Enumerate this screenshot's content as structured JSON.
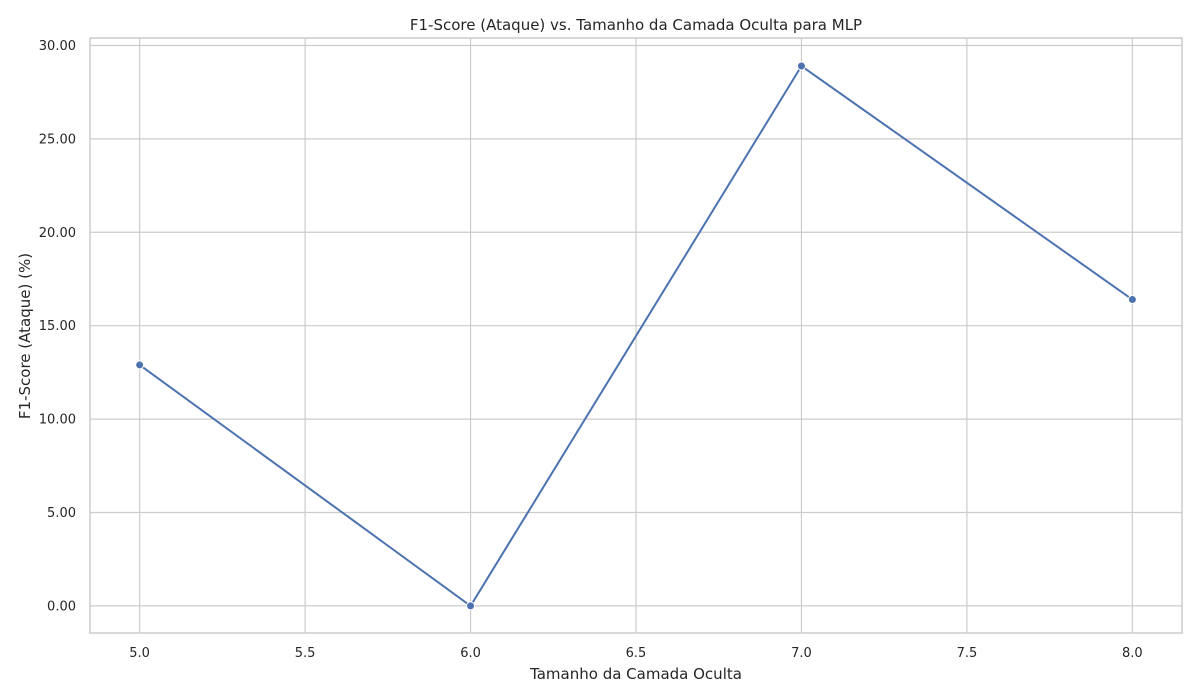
{
  "chart_data": {
    "type": "line",
    "title": "F1-Score (Ataque) vs. Tamanho da Camada Oculta para MLP",
    "xlabel": "Tamanho da Camada Oculta",
    "ylabel": "F1-Score (Ataque) (%)",
    "x": [
      5,
      6,
      7,
      8
    ],
    "series": [
      {
        "values": [
          12.9,
          0.0,
          28.9,
          16.4
        ],
        "color": "#4c72b0"
      }
    ],
    "xlim": [
      4.85,
      8.15
    ],
    "ylim": [
      -1.45,
      30.4
    ],
    "xticks": [
      5.0,
      5.5,
      6.0,
      6.5,
      7.0,
      7.5,
      8.0
    ],
    "xtick_labels": [
      "5.0",
      "5.5",
      "6.0",
      "6.5",
      "7.0",
      "7.5",
      "8.0"
    ],
    "yticks": [
      0,
      5,
      10,
      15,
      20,
      25,
      30
    ],
    "ytick_labels": [
      "0.00",
      "5.00",
      "10.00",
      "15.00",
      "20.00",
      "25.00",
      "30.00"
    ],
    "grid": true,
    "marker": "circle"
  }
}
